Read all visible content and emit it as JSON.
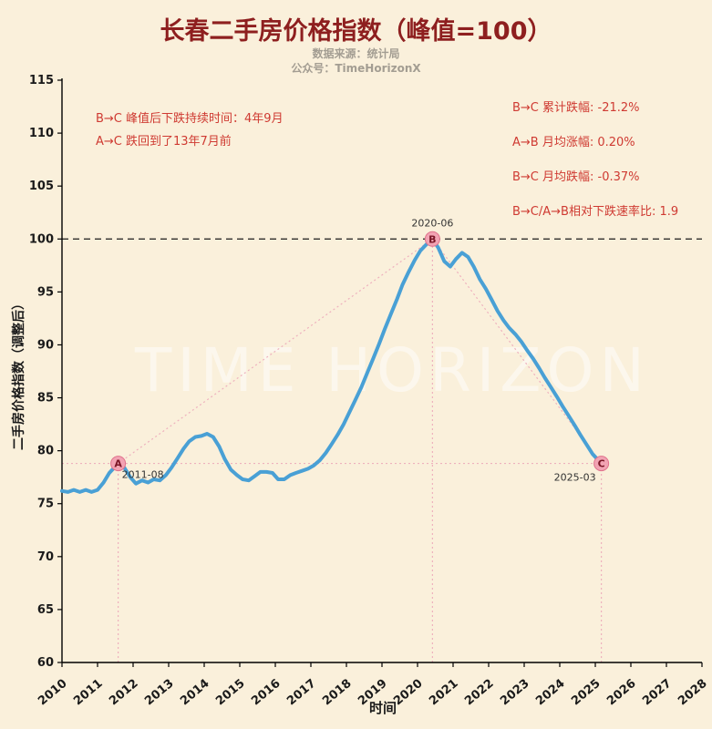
{
  "header": {
    "title": "长春二手房价格指数（峰值=100）",
    "subtitle1": "数据来源：统计局",
    "subtitle2": "公众号：TimeHorizonX"
  },
  "watermark": "TIME HORIZON",
  "annotations": {
    "left": [
      "B→C 峰值后下跌持续时间：4年9月",
      "A→C 跌回到了13年7月前"
    ],
    "right": [
      "B→C 累计跌幅: -21.2%",
      "A→B 月均涨幅: 0.20%",
      "B→C 月均跌幅: -0.37%",
      "B→C/A→B相对下跌速率比: 1.9"
    ]
  },
  "chart_data": {
    "type": "line",
    "title": "长春二手房价格指数（峰值=100）",
    "xlabel": "时间",
    "ylabel": "二手房价格指数（调整后）",
    "xlim": [
      2010,
      2028
    ],
    "ylim": [
      60,
      115
    ],
    "xticks": [
      2010,
      2011,
      2012,
      2013,
      2014,
      2015,
      2016,
      2017,
      2018,
      2019,
      2020,
      2021,
      2022,
      2023,
      2024,
      2025,
      2026,
      2027,
      2028
    ],
    "yticks": [
      60,
      65,
      70,
      75,
      80,
      85,
      90,
      95,
      100,
      105,
      110,
      115
    ],
    "grid": false,
    "line_color": "#49a0d5",
    "guide_color": "#eeb0bd",
    "marker_fill": "#f2a3b3",
    "marker_stroke": "#e0718c",
    "marker_text_color": "#7b1626",
    "peak_line_y": 100,
    "ref_line_y": 78.8,
    "markers": [
      {
        "label": "A",
        "date_label": "2011-08",
        "x": 2011.58,
        "y": 78.8,
        "label_pos": "below-right"
      },
      {
        "label": "B",
        "date_label": "2020-06",
        "x": 2020.42,
        "y": 100.0,
        "label_pos": "above"
      },
      {
        "label": "C",
        "date_label": "2025-03",
        "x": 2025.17,
        "y": 78.8,
        "label_pos": "below-left"
      }
    ],
    "series": [
      {
        "name": "长春二手房价格指数",
        "x": [
          2010.0,
          2010.17,
          2010.33,
          2010.5,
          2010.67,
          2010.83,
          2011.0,
          2011.17,
          2011.33,
          2011.58,
          2011.75,
          2011.92,
          2012.08,
          2012.25,
          2012.42,
          2012.58,
          2012.75,
          2012.92,
          2013.08,
          2013.25,
          2013.42,
          2013.58,
          2013.75,
          2013.92,
          2014.08,
          2014.25,
          2014.42,
          2014.58,
          2014.75,
          2014.92,
          2015.08,
          2015.25,
          2015.42,
          2015.58,
          2015.75,
          2015.92,
          2016.08,
          2016.25,
          2016.42,
          2016.58,
          2016.75,
          2016.92,
          2017.08,
          2017.25,
          2017.42,
          2017.58,
          2017.75,
          2017.92,
          2018.08,
          2018.25,
          2018.42,
          2018.58,
          2018.75,
          2018.92,
          2019.08,
          2019.25,
          2019.42,
          2019.58,
          2019.75,
          2019.92,
          2020.08,
          2020.25,
          2020.42,
          2020.58,
          2020.75,
          2020.92,
          2021.08,
          2021.25,
          2021.42,
          2021.58,
          2021.75,
          2021.92,
          2022.08,
          2022.25,
          2022.42,
          2022.58,
          2022.75,
          2022.92,
          2023.08,
          2023.25,
          2023.42,
          2023.58,
          2023.75,
          2023.92,
          2024.08,
          2024.25,
          2024.42,
          2024.58,
          2024.75,
          2024.92,
          2025.17
        ],
        "y": [
          76.2,
          76.1,
          76.3,
          76.1,
          76.3,
          76.1,
          76.3,
          77.0,
          77.9,
          78.8,
          78.4,
          77.5,
          76.9,
          77.2,
          77.0,
          77.3,
          77.2,
          77.7,
          78.4,
          79.3,
          80.2,
          80.9,
          81.3,
          81.4,
          81.6,
          81.3,
          80.4,
          79.2,
          78.2,
          77.7,
          77.3,
          77.2,
          77.6,
          78.0,
          78.0,
          77.9,
          77.3,
          77.3,
          77.7,
          77.9,
          78.1,
          78.3,
          78.6,
          79.1,
          79.8,
          80.6,
          81.5,
          82.5,
          83.6,
          84.8,
          86.0,
          87.3,
          88.7,
          90.1,
          91.5,
          92.9,
          94.3,
          95.7,
          96.9,
          98.0,
          98.9,
          99.5,
          100.0,
          99.2,
          97.9,
          97.4,
          98.1,
          98.7,
          98.3,
          97.4,
          96.2,
          95.3,
          94.3,
          93.2,
          92.3,
          91.6,
          91.0,
          90.3,
          89.5,
          88.7,
          87.8,
          86.9,
          86.0,
          85.1,
          84.2,
          83.3,
          82.4,
          81.5,
          80.6,
          79.7,
          78.8
        ]
      }
    ]
  }
}
